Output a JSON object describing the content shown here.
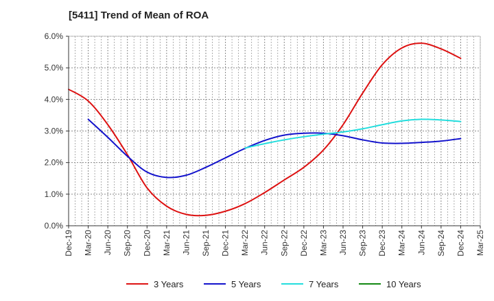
{
  "chart_data": {
    "type": "line",
    "title": "[5411]  Trend of Mean of ROA",
    "xlabel": "",
    "ylabel": "",
    "x": [
      "Dec-19",
      "Mar-20",
      "Jun-20",
      "Sep-20",
      "Dec-20",
      "Mar-21",
      "Jun-21",
      "Sep-21",
      "Dec-21",
      "Mar-22",
      "Jun-22",
      "Sep-22",
      "Dec-22",
      "Mar-23",
      "Jun-23",
      "Sep-23",
      "Dec-23",
      "Mar-24",
      "Jun-24",
      "Sep-24",
      "Dec-24",
      "Mar-25"
    ],
    "ylim": [
      0,
      6
    ],
    "yticks": [
      0,
      1,
      2,
      3,
      4,
      5,
      6
    ],
    "ytick_labels": [
      "0.0%",
      "1.0%",
      "2.0%",
      "3.0%",
      "4.0%",
      "5.0%",
      "6.0%"
    ],
    "grid": true,
    "legend_position": "bottom",
    "series": [
      {
        "name": "3 Years",
        "color": "#dd1111",
        "values": [
          4.32,
          3.95,
          3.2,
          2.25,
          1.2,
          0.62,
          0.36,
          0.33,
          0.46,
          0.7,
          1.05,
          1.45,
          1.85,
          2.4,
          3.2,
          4.2,
          5.1,
          5.63,
          5.78,
          5.6,
          5.3,
          null
        ]
      },
      {
        "name": "5 Years",
        "color": "#1111cc",
        "values": [
          null,
          3.37,
          2.8,
          2.2,
          1.7,
          1.53,
          1.6,
          1.85,
          2.15,
          2.45,
          2.7,
          2.87,
          2.93,
          2.93,
          2.85,
          2.72,
          2.62,
          2.61,
          2.64,
          2.68,
          2.76,
          null
        ]
      },
      {
        "name": "7 Years",
        "color": "#22dddd",
        "values": [
          null,
          null,
          null,
          null,
          null,
          null,
          null,
          null,
          null,
          2.46,
          2.6,
          2.72,
          2.82,
          2.9,
          2.97,
          3.07,
          3.2,
          3.32,
          3.37,
          3.35,
          3.3,
          null
        ]
      },
      {
        "name": "10 Years",
        "color": "#118811",
        "values": [
          null,
          null,
          null,
          null,
          null,
          null,
          null,
          null,
          null,
          null,
          null,
          null,
          null,
          null,
          null,
          null,
          null,
          null,
          null,
          null,
          null,
          null
        ]
      }
    ]
  }
}
